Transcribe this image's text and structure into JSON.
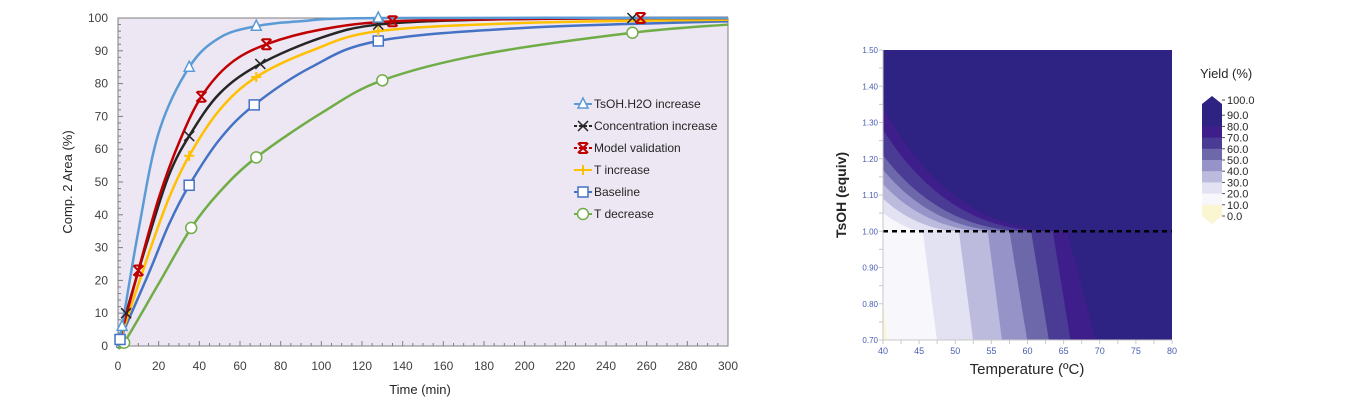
{
  "chart_data": [
    {
      "type": "line",
      "title": "",
      "xlabel": "Time (min)",
      "ylabel": "Comp. 2 Area (%)",
      "xlim": [
        0,
        300
      ],
      "ylim": [
        0,
        100
      ],
      "xticks": [
        0,
        20,
        40,
        60,
        80,
        100,
        120,
        140,
        160,
        180,
        200,
        220,
        240,
        260,
        280,
        300
      ],
      "yticks": [
        0,
        10,
        20,
        30,
        40,
        50,
        60,
        70,
        80,
        90,
        100
      ],
      "grid": false,
      "background": "#ede6f3",
      "legend_position": "center-right",
      "series": [
        {
          "name": "TsOH.H2O increase",
          "marker": "triangle",
          "color": "#5b9bd5",
          "points": [
            [
              2,
              6
            ],
            [
              35,
              85
            ],
            [
              68,
              97.5
            ],
            [
              128,
              100
            ]
          ],
          "curve": [
            [
              0,
              0
            ],
            [
              2,
              6
            ],
            [
              10,
              35
            ],
            [
              20,
              65
            ],
            [
              35,
              85
            ],
            [
              50,
              94
            ],
            [
              68,
              97.5
            ],
            [
              90,
              99
            ],
            [
              128,
              100
            ],
            [
              300,
              100
            ]
          ]
        },
        {
          "name": "Concentration increase",
          "marker": "x",
          "color": "#262626",
          "points": [
            [
              4,
              10
            ],
            [
              35,
              64
            ],
            [
              70,
              86
            ],
            [
              128,
              98
            ],
            [
              253,
              100
            ]
          ],
          "curve": [
            [
              0,
              0
            ],
            [
              4,
              10
            ],
            [
              15,
              33
            ],
            [
              25,
              52
            ],
            [
              35,
              64
            ],
            [
              50,
              77
            ],
            [
              70,
              86
            ],
            [
              100,
              94
            ],
            [
              128,
              98
            ],
            [
              180,
              99.5
            ],
            [
              253,
              100
            ],
            [
              300,
              100
            ]
          ]
        },
        {
          "name": "Model validation",
          "marker": "asterisk",
          "color": "#c00000",
          "points": [
            [
              10,
              23
            ],
            [
              41,
              76
            ],
            [
              73,
              92
            ],
            [
              135,
              99
            ],
            [
              257,
              100
            ]
          ],
          "curve": [
            [
              0,
              0
            ],
            [
              10,
              23
            ],
            [
              20,
              45
            ],
            [
              30,
              62
            ],
            [
              41,
              76
            ],
            [
              55,
              86
            ],
            [
              73,
              92
            ],
            [
              100,
              96.5
            ],
            [
              135,
              99
            ],
            [
              200,
              99.7
            ],
            [
              257,
              100
            ],
            [
              300,
              100
            ]
          ]
        },
        {
          "name": "T increase",
          "marker": "plus",
          "color": "#ffc000",
          "points": [
            [
              35,
              58
            ],
            [
              68,
              82
            ],
            [
              128,
              96
            ]
          ],
          "curve": [
            [
              0,
              0
            ],
            [
              15,
              28
            ],
            [
              25,
              45
            ],
            [
              35,
              58
            ],
            [
              50,
              72
            ],
            [
              68,
              82
            ],
            [
              95,
              90
            ],
            [
              128,
              96
            ],
            [
              200,
              98.5
            ],
            [
              300,
              99.5
            ]
          ]
        },
        {
          "name": "Baseline",
          "marker": "square",
          "color": "#4472c4",
          "points": [
            [
              1,
              2
            ],
            [
              35,
              49
            ],
            [
              67,
              73.5
            ],
            [
              128,
              93
            ]
          ],
          "curve": [
            [
              0,
              0
            ],
            [
              1,
              2
            ],
            [
              15,
              22
            ],
            [
              25,
              37
            ],
            [
              35,
              49
            ],
            [
              50,
              63
            ],
            [
              67,
              73.5
            ],
            [
              95,
              85
            ],
            [
              128,
              93
            ],
            [
              200,
              97
            ],
            [
              300,
              99
            ]
          ]
        },
        {
          "name": "T decrease",
          "marker": "circle",
          "color": "#70ad47",
          "points": [
            [
              3,
              1
            ],
            [
              36,
              36
            ],
            [
              68,
              57.5
            ],
            [
              130,
              81
            ],
            [
              253,
              95.5
            ]
          ],
          "curve": [
            [
              0,
              0
            ],
            [
              3,
              1
            ],
            [
              20,
              19
            ],
            [
              36,
              36
            ],
            [
              50,
              47
            ],
            [
              68,
              57.5
            ],
            [
              100,
              71
            ],
            [
              130,
              81
            ],
            [
              180,
              89
            ],
            [
              253,
              95.5
            ],
            [
              300,
              98
            ]
          ]
        }
      ]
    },
    {
      "type": "heatmap",
      "subtype": "contour",
      "title": "",
      "xlabel": "Temperature (ºC)",
      "ylabel": "TsOH (equiv)",
      "xlim": [
        40,
        80
      ],
      "ylim": [
        0.7,
        1.5
      ],
      "xticks": [
        "40",
        "45",
        "50",
        "55",
        "60",
        "65",
        "70",
        "75",
        "80"
      ],
      "yticks": [
        "0.70",
        "0.80",
        "0.90",
        "1.00",
        "1.10",
        "1.20",
        "1.30",
        "1.40",
        "1.50"
      ],
      "reference_line": {
        "axis": "y",
        "value": 1.0,
        "style": "dashed",
        "color": "#000000"
      },
      "colorbar": {
        "title": "Yield (%)",
        "levels": [
          "100.0",
          "90.0",
          "80.0",
          "70.0",
          "60.0",
          "50.0",
          "40.0",
          "30.0",
          "20.0",
          "10.0",
          "0.0"
        ],
        "bands": [
          {
            "range": [
              90,
              100
            ],
            "color": "#2e2283"
          },
          {
            "range": [
              80,
              90
            ],
            "color": "#2e2283"
          },
          {
            "range": [
              70,
              80
            ],
            "color": "#3e1e8a"
          },
          {
            "range": [
              60,
              70
            ],
            "color": "#4a3b94"
          },
          {
            "range": [
              50,
              60
            ],
            "color": "#6c68aa"
          },
          {
            "range": [
              40,
              50
            ],
            "color": "#9593c7"
          },
          {
            "range": [
              30,
              40
            ],
            "color": "#bcbbdd"
          },
          {
            "range": [
              20,
              30
            ],
            "color": "#e3e2f2"
          },
          {
            "range": [
              10,
              20
            ],
            "color": "#f7f7fc"
          },
          {
            "range": [
              0,
              10
            ],
            "color": "#fbf6d2"
          }
        ]
      },
      "contour_boundaries_below_1eq": [
        {
          "level": 20,
          "x_at_1eq": 45.5,
          "x_at_0p70": 47.5
        },
        {
          "level": 30,
          "x_at_1eq": 50.5,
          "x_at_0p70": 52.5
        },
        {
          "level": 40,
          "x_at_1eq": 54.5,
          "x_at_0p70": 56.5
        },
        {
          "level": 50,
          "x_at_1eq": 57.5,
          "x_at_0p70": 60.0
        },
        {
          "level": 60,
          "x_at_1eq": 60.5,
          "x_at_0p70": 63.0
        },
        {
          "level": 70,
          "x_at_1eq": 63.5,
          "x_at_0p70": 66.0
        },
        {
          "level": 80,
          "x_at_1eq": 65.5,
          "x_at_0p70": 69.5
        }
      ],
      "contour_boundaries_left_edge": [
        {
          "level": 20,
          "y_at_40C": 1.05
        },
        {
          "level": 30,
          "y_at_40C": 1.09
        },
        {
          "level": 40,
          "y_at_40C": 1.13
        },
        {
          "level": 50,
          "y_at_40C": 1.17
        },
        {
          "level": 60,
          "y_at_40C": 1.21
        },
        {
          "level": 70,
          "y_at_40C": 1.28
        },
        {
          "level": 80,
          "y_at_40C": 1.34
        }
      ]
    }
  ]
}
